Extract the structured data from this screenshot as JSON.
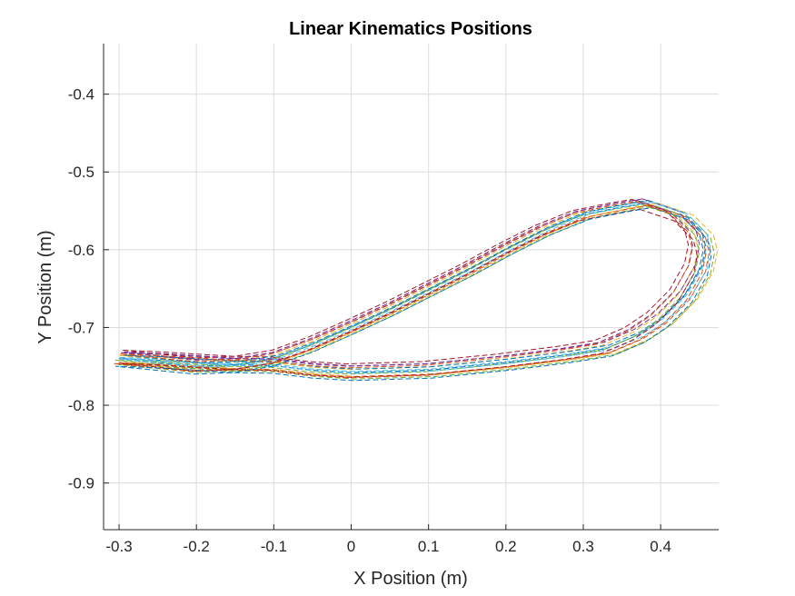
{
  "chart_data": {
    "type": "line",
    "title": "Linear Kinematics Positions",
    "xlabel": "X Position (m)",
    "ylabel": "Y Position (m)",
    "xlim": [
      -0.32,
      0.475
    ],
    "ylim": [
      -0.96,
      -0.335
    ],
    "xticks": [
      -0.3,
      -0.2,
      -0.1,
      0,
      0.1,
      0.2,
      0.3,
      0.4
    ],
    "yticks": [
      -0.4,
      -0.5,
      -0.6,
      -0.7,
      -0.8,
      -0.9
    ],
    "grid": true,
    "line_style": "dashed",
    "base_path": {
      "x": [
        0.38,
        0.425,
        0.45,
        0.455,
        0.45,
        0.43,
        0.4,
        0.37,
        0.33,
        0.28,
        0.2,
        0.1,
        0.0,
        -0.05,
        -0.1,
        -0.15,
        -0.2,
        -0.25,
        -0.3,
        -0.25,
        -0.2,
        -0.15,
        -0.1,
        -0.05,
        0.0,
        0.05,
        0.1,
        0.15,
        0.2,
        0.25,
        0.3,
        0.35,
        0.38
      ],
      "y": [
        -0.54,
        -0.555,
        -0.58,
        -0.6,
        -0.625,
        -0.66,
        -0.69,
        -0.71,
        -0.727,
        -0.735,
        -0.745,
        -0.755,
        -0.758,
        -0.755,
        -0.749,
        -0.748,
        -0.75,
        -0.745,
        -0.74,
        -0.742,
        -0.745,
        -0.748,
        -0.74,
        -0.722,
        -0.7,
        -0.677,
        -0.652,
        -0.627,
        -0.6,
        -0.575,
        -0.555,
        -0.545,
        -0.54
      ]
    },
    "series": [
      {
        "color": "#0072BD",
        "dx": 0.0,
        "dy": 0.0,
        "scale": 1.0
      },
      {
        "color": "#D95319",
        "dx": 0.004,
        "dy": -0.004,
        "scale": 1.01
      },
      {
        "color": "#EDB120",
        "dx": -0.003,
        "dy": 0.003,
        "scale": 0.99
      },
      {
        "color": "#7E2F8E",
        "dx": -0.006,
        "dy": 0.006,
        "scale": 0.98
      },
      {
        "color": "#77AC30",
        "dx": 0.007,
        "dy": -0.006,
        "scale": 1.02
      },
      {
        "color": "#4DBEEE",
        "dx": 0.002,
        "dy": 0.002,
        "scale": 1.005
      },
      {
        "color": "#A2142F",
        "dx": -0.008,
        "dy": 0.008,
        "scale": 0.97
      },
      {
        "color": "#0072BD",
        "dx": 0.005,
        "dy": 0.004,
        "scale": 0.995
      },
      {
        "color": "#D95319",
        "dx": -0.002,
        "dy": -0.005,
        "scale": 1.015
      },
      {
        "color": "#EDB120",
        "dx": 0.009,
        "dy": -0.003,
        "scale": 1.025
      },
      {
        "color": "#7E2F8E",
        "dx": 0.001,
        "dy": 0.007,
        "scale": 0.985
      },
      {
        "color": "#77AC30",
        "dx": -0.005,
        "dy": -0.002,
        "scale": 1.0
      },
      {
        "color": "#4DBEEE",
        "dx": 0.006,
        "dy": 0.0,
        "scale": 1.01
      },
      {
        "color": "#A2142F",
        "dx": -0.004,
        "dy": -0.007,
        "scale": 0.99
      },
      {
        "color": "#0072BD",
        "dx": 0.003,
        "dy": -0.008,
        "scale": 1.02
      },
      {
        "color": "#D95319",
        "dx": -0.007,
        "dy": 0.004,
        "scale": 0.98
      }
    ]
  }
}
